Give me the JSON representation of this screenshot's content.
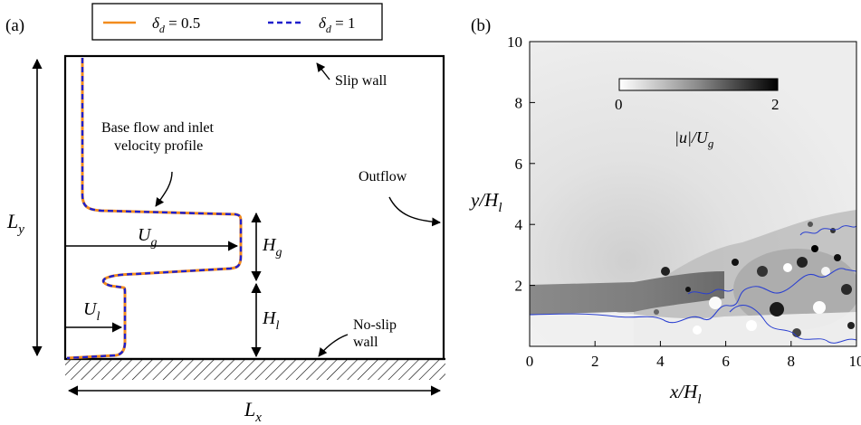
{
  "panel_a": {
    "label": "(a)",
    "legend": [
      {
        "symbol": "δ",
        "sub": "d",
        "rest": " = 0.5",
        "color": "#f28c1e",
        "style": "solid"
      },
      {
        "symbol": "δ",
        "sub": "d",
        "rest": " = 1",
        "color": "#1f1fcc",
        "style": "dashed"
      }
    ],
    "annotations": {
      "slip_wall": "Slip wall",
      "outflow": "Outflow",
      "no_slip_line1": "No-slip",
      "no_slip_line2": "wall",
      "base_flow_line1": "Base flow and inlet",
      "base_flow_line2": "velocity profile"
    },
    "dims": {
      "Ly": {
        "main": "L",
        "sub": "y"
      },
      "Lx": {
        "main": "L",
        "sub": "x"
      },
      "Ug": {
        "main": "U",
        "sub": "g"
      },
      "Ul": {
        "main": "U",
        "sub": "l"
      },
      "Hg": {
        "main": "H",
        "sub": "g"
      },
      "Hl": {
        "main": "H",
        "sub": "l"
      }
    }
  },
  "panel_b": {
    "label": "(b)",
    "colorbar": {
      "min": "0",
      "max": "2",
      "label_main": "|u|/U",
      "label_sub": "g"
    },
    "xlabel": {
      "main": "x/H",
      "sub": "l"
    },
    "ylabel": {
      "main": "y/H",
      "sub": "l"
    },
    "chart_data": {
      "type": "heatmap",
      "xlim": [
        0,
        10
      ],
      "ylim": [
        0,
        10
      ],
      "xticks": [
        "0",
        "2",
        "4",
        "6",
        "8",
        "10"
      ],
      "yticks": [
        "2",
        "4",
        "6",
        "8",
        "10"
      ],
      "colorbar_range": [
        0,
        2
      ],
      "colormap": "white-to-black",
      "interface_color": "#2a3fd0"
    }
  }
}
